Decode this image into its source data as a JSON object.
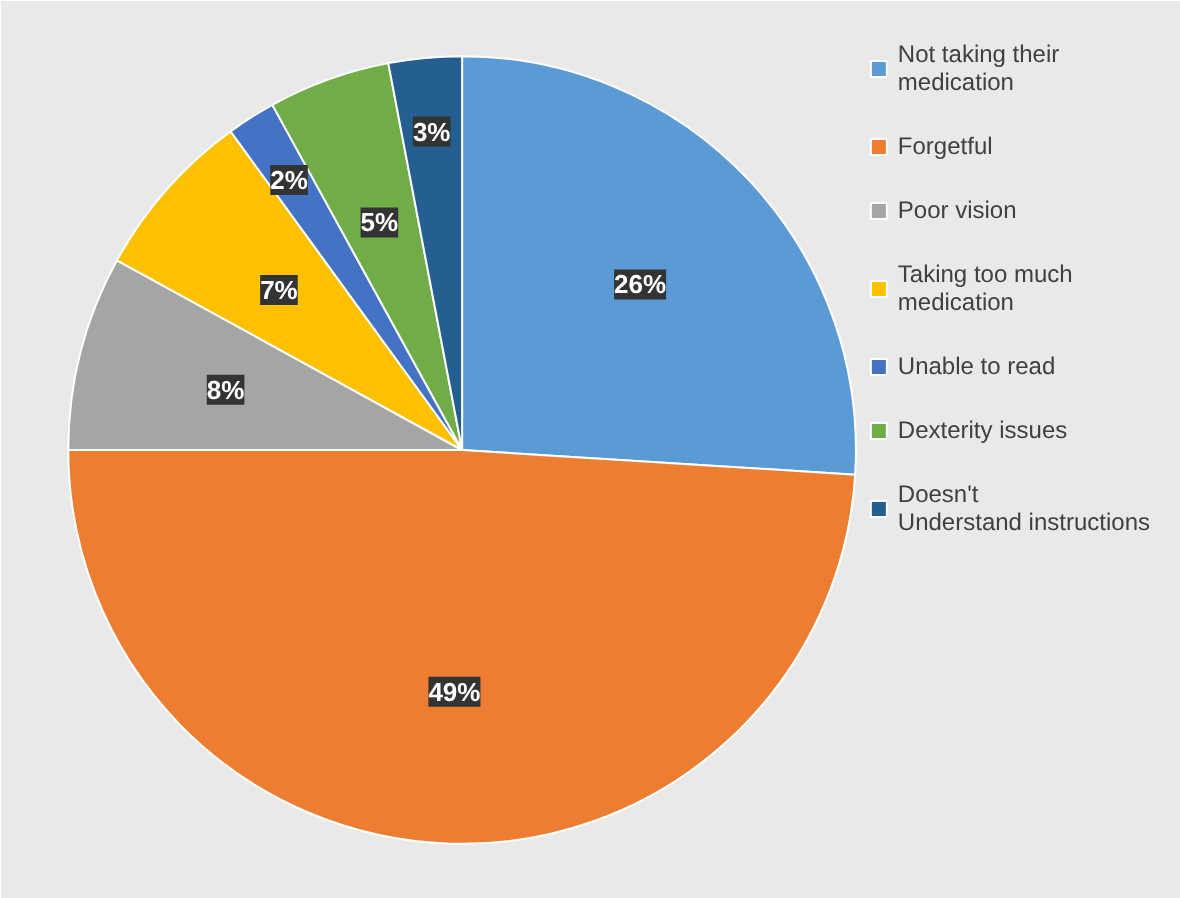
{
  "chart_data": {
    "type": "pie",
    "categories": [
      "Not taking their medication",
      "Forgetful",
      "Poor vision",
      "Taking too much medication",
      "Unable to read",
      "Dexterity issues",
      "Doesn't Understand instructions"
    ],
    "values": [
      26,
      49,
      8,
      7,
      2,
      5,
      3
    ],
    "value_labels": [
      "26%",
      "49%",
      "8%",
      "7%",
      "2%",
      "5%",
      "3%"
    ],
    "colors": [
      "#5b9bd5",
      "#ed7d31",
      "#a5a5a5",
      "#ffc000",
      "#4472c4",
      "#70ad47",
      "#255e91"
    ],
    "legend": "right"
  }
}
